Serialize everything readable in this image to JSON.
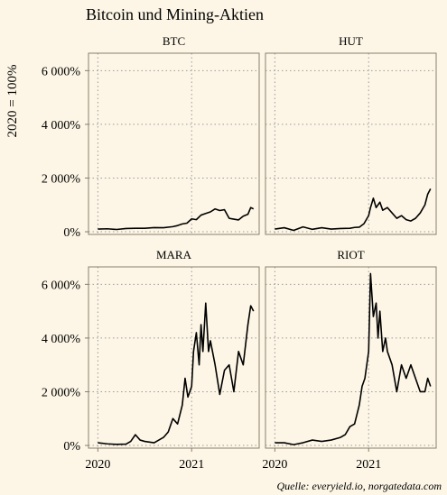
{
  "colors": {
    "background": "#fdf6e6",
    "panel_border": "#8a7d6c",
    "grid": "#9a9a9a",
    "line": "#000000",
    "text": "#111111"
  },
  "chart_data": {
    "type": "line",
    "title": "Bitcoin und Mining-Aktien",
    "ylabel": "2020 = 100%",
    "xlabel": "",
    "caption": "Quelle: everyield.io, norgatedata.com",
    "facets": [
      "BTC",
      "HUT",
      "MARA",
      "RIOT"
    ],
    "layout": "2x2",
    "x_unit": "year",
    "xlim": [
      2019.9,
      2021.72
    ],
    "ylim": [
      -100,
      6650
    ],
    "x_ticks": [
      2020,
      2021
    ],
    "x_tick_labels": [
      "2020",
      "2021"
    ],
    "y_ticks": [
      0,
      2000,
      4000,
      6000
    ],
    "y_tick_labels": [
      "0%",
      "2 000%",
      "4 000%",
      "6 000%"
    ],
    "grid": "dotted",
    "series": [
      {
        "facet": "BTC",
        "x": [
          2020.0,
          2020.1,
          2020.2,
          2020.3,
          2020.4,
          2020.5,
          2020.6,
          2020.7,
          2020.8,
          2020.85,
          2020.9,
          2020.95,
          2021.0,
          2021.05,
          2021.1,
          2021.15,
          2021.2,
          2021.25,
          2021.3,
          2021.35,
          2021.4,
          2021.45,
          2021.5,
          2021.55,
          2021.6,
          2021.63,
          2021.66
        ],
        "y": [
          100,
          110,
          85,
          120,
          130,
          130,
          155,
          150,
          190,
          230,
          290,
          320,
          480,
          450,
          620,
          680,
          740,
          850,
          790,
          820,
          500,
          470,
          440,
          580,
          650,
          900,
          850
        ]
      },
      {
        "facet": "HUT",
        "x": [
          2020.0,
          2020.1,
          2020.2,
          2020.3,
          2020.4,
          2020.5,
          2020.6,
          2020.7,
          2020.8,
          2020.85,
          2020.9,
          2020.95,
          2021.0,
          2021.02,
          2021.05,
          2021.08,
          2021.12,
          2021.15,
          2021.2,
          2021.25,
          2021.3,
          2021.35,
          2021.4,
          2021.45,
          2021.5,
          2021.55,
          2021.6,
          2021.63,
          2021.66
        ],
        "y": [
          100,
          150,
          50,
          180,
          90,
          150,
          100,
          120,
          130,
          160,
          170,
          300,
          600,
          900,
          1250,
          900,
          1100,
          800,
          900,
          700,
          500,
          600,
          450,
          400,
          500,
          700,
          1000,
          1400,
          1600
        ]
      },
      {
        "facet": "MARA",
        "x": [
          2020.0,
          2020.1,
          2020.2,
          2020.3,
          2020.35,
          2020.4,
          2020.45,
          2020.5,
          2020.6,
          2020.7,
          2020.75,
          2020.8,
          2020.85,
          2020.9,
          2020.93,
          2020.96,
          2021.0,
          2021.02,
          2021.05,
          2021.08,
          2021.1,
          2021.12,
          2021.15,
          2021.18,
          2021.2,
          2021.25,
          2021.3,
          2021.35,
          2021.4,
          2021.45,
          2021.5,
          2021.55,
          2021.6,
          2021.63,
          2021.66
        ],
        "y": [
          100,
          60,
          40,
          50,
          150,
          400,
          200,
          150,
          100,
          300,
          500,
          1000,
          800,
          1500,
          2500,
          1800,
          2200,
          3500,
          4200,
          3000,
          4500,
          3500,
          5300,
          3500,
          3900,
          3000,
          1900,
          2800,
          3000,
          2000,
          3500,
          3000,
          4500,
          5200,
          5000
        ]
      },
      {
        "facet": "RIOT",
        "x": [
          2020.0,
          2020.1,
          2020.2,
          2020.3,
          2020.4,
          2020.5,
          2020.6,
          2020.7,
          2020.75,
          2020.8,
          2020.85,
          2020.9,
          2020.93,
          2020.96,
          2021.0,
          2021.02,
          2021.05,
          2021.08,
          2021.1,
          2021.12,
          2021.15,
          2021.18,
          2021.2,
          2021.25,
          2021.3,
          2021.35,
          2021.4,
          2021.45,
          2021.5,
          2021.55,
          2021.6,
          2021.63,
          2021.66
        ],
        "y": [
          100,
          100,
          30,
          100,
          200,
          150,
          200,
          300,
          400,
          700,
          800,
          1500,
          2200,
          2500,
          3500,
          6400,
          4800,
          5300,
          4000,
          5000,
          3500,
          4000,
          3500,
          3000,
          2000,
          3000,
          2500,
          3000,
          2500,
          2000,
          2000,
          2500,
          2200
        ]
      }
    ]
  }
}
